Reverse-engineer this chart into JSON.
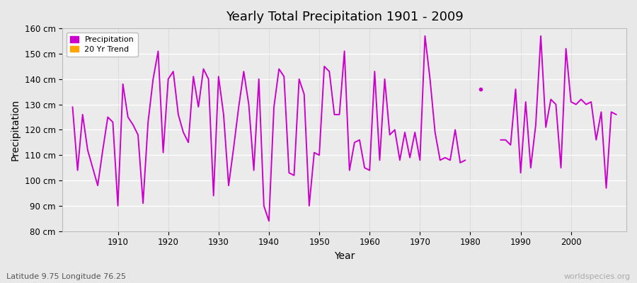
{
  "title": "Yearly Total Precipitation 1901 - 2009",
  "xlabel": "Year",
  "ylabel": "Precipitation",
  "subtitle": "Latitude 9.75 Longitude 76.25",
  "watermark": "worldspecies.org",
  "ylim": [
    80,
    160
  ],
  "yticks": [
    80,
    90,
    100,
    110,
    120,
    130,
    140,
    150,
    160
  ],
  "ytick_labels": [
    "80 cm",
    "90 cm",
    "100 cm",
    "110 cm",
    "120 cm",
    "130 cm",
    "140 cm",
    "150 cm",
    "160 cm"
  ],
  "line_color": "#CC00CC",
  "line_width": 1.4,
  "fig_bg": "#E8E8E8",
  "plot_bg": "#EBEBEB",
  "legend_entries": [
    "Precipitation",
    "20 Yr Trend"
  ],
  "legend_colors": [
    "#CC00CC",
    "#FFA500"
  ],
  "xticks": [
    1910,
    1920,
    1930,
    1940,
    1950,
    1960,
    1970,
    1980,
    1990,
    2000
  ],
  "xlim": [
    1899,
    2011
  ],
  "segment1_years": [
    1901,
    1902,
    1903,
    1904,
    1905,
    1906,
    1907,
    1908,
    1909,
    1910,
    1911,
    1912,
    1913,
    1914,
    1915,
    1916,
    1917,
    1918,
    1919,
    1920,
    1921,
    1922,
    1923,
    1924,
    1925,
    1926,
    1927,
    1928,
    1929,
    1930,
    1931,
    1932,
    1933,
    1934,
    1935,
    1936,
    1937,
    1938,
    1939,
    1940,
    1941,
    1942,
    1943,
    1944,
    1945,
    1946,
    1947,
    1948,
    1949,
    1950,
    1951,
    1952,
    1953,
    1954,
    1955,
    1956,
    1957,
    1958,
    1959,
    1960,
    1961,
    1962,
    1963,
    1964,
    1965,
    1966,
    1967,
    1968,
    1969,
    1970,
    1971,
    1972,
    1973,
    1974,
    1975,
    1976,
    1977,
    1978,
    1979
  ],
  "segment1_values": [
    129,
    104,
    126,
    112,
    105,
    98,
    112,
    125,
    123,
    90,
    138,
    125,
    122,
    118,
    91,
    123,
    140,
    151,
    111,
    140,
    143,
    126,
    119,
    115,
    141,
    129,
    144,
    140,
    94,
    141,
    126,
    98,
    113,
    129,
    143,
    130,
    104,
    140,
    90,
    84,
    129,
    144,
    141,
    103,
    102,
    140,
    134,
    90,
    111,
    110,
    145,
    143,
    126,
    126,
    151,
    104,
    115,
    116,
    105,
    104,
    143,
    108,
    140,
    118,
    120,
    108,
    119,
    109,
    119,
    108,
    157,
    140,
    119,
    108,
    109,
    108,
    120,
    107,
    108
  ],
  "isolated_point_year": 1982,
  "isolated_point_value": 136,
  "segment2_years": [
    1986,
    1987,
    1988,
    1989,
    1990,
    1991,
    1992,
    1993,
    1994,
    1995,
    1996,
    1997,
    1998,
    1999,
    2000,
    2001,
    2002,
    2003,
    2004,
    2005,
    2006,
    2007,
    2008,
    2009
  ],
  "segment2_values": [
    116,
    116,
    114,
    136,
    103,
    131,
    105,
    122,
    157,
    121,
    132,
    130,
    105,
    152,
    131,
    130,
    132,
    130,
    131,
    116,
    127,
    97,
    127,
    126
  ]
}
